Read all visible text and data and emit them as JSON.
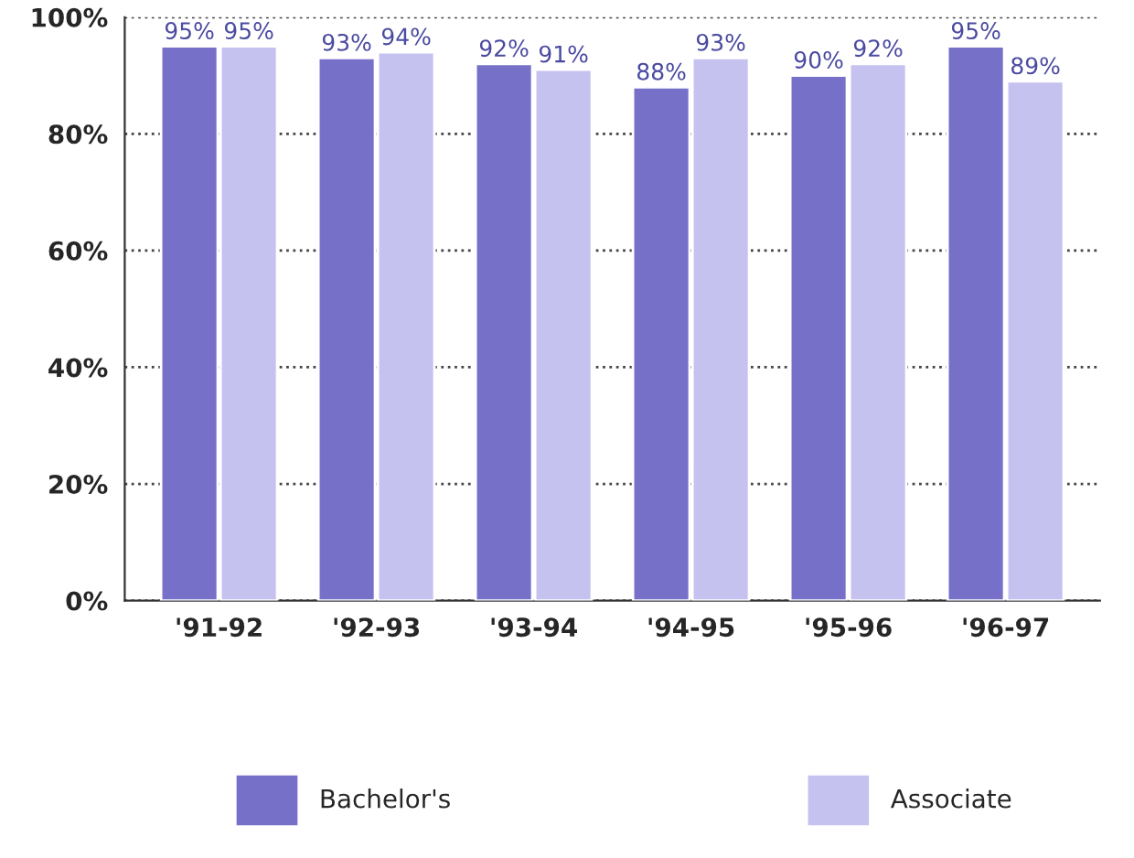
{
  "chart_data": {
    "type": "bar",
    "categories": [
      "'91-92",
      "'92-93",
      "'93-94",
      "'94-95",
      "'95-96",
      "'96-97"
    ],
    "series": [
      {
        "name": "Bachelor's",
        "color": "#7670c8",
        "values": [
          95,
          93,
          92,
          88,
          90,
          95
        ],
        "value_labels": [
          "95%",
          "93%",
          "92%",
          "88%",
          "90%",
          "95%"
        ]
      },
      {
        "name": "Associate",
        "color": "#c6c2f0",
        "values": [
          95,
          94,
          91,
          93,
          92,
          89
        ],
        "value_labels": [
          "95%",
          "94%",
          "91%",
          "93%",
          "92%",
          "89%"
        ]
      }
    ],
    "ylim": [
      0,
      100
    ],
    "yticks": [
      {
        "value": 0,
        "label": "0%"
      },
      {
        "value": 20,
        "label": "20%"
      },
      {
        "value": 40,
        "label": "40%"
      },
      {
        "value": 60,
        "label": "60%"
      },
      {
        "value": 80,
        "label": "80%"
      },
      {
        "value": 100,
        "label": "100%"
      }
    ],
    "grid": "y",
    "line_style": "dotted",
    "legend": "bottom"
  }
}
